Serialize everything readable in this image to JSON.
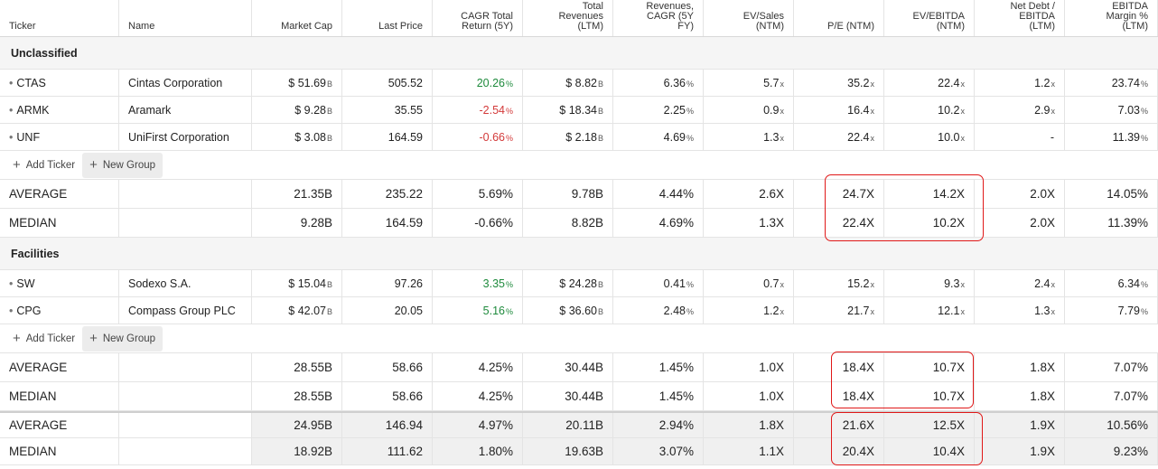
{
  "headers": {
    "ticker": "Ticker",
    "name": "Name",
    "market_cap": "Market Cap",
    "last_price": "Last Price",
    "cagr": [
      "CAGR Total",
      "Return (5Y)"
    ],
    "revenues": [
      "Total",
      "Revenues",
      "(LTM)"
    ],
    "rev_cagr": [
      "Revenues,",
      "CAGR (5Y",
      "FY)"
    ],
    "ev_sales": [
      "EV/Sales",
      "(NTM)"
    ],
    "pe": "P/E (NTM)",
    "ev_ebitda": [
      "EV/EBITDA",
      "(NTM)"
    ],
    "net_debt": [
      "Net Debt /",
      "EBITDA",
      "(LTM)"
    ],
    "ebitda_margin": [
      "EBITDA",
      "Margin %",
      "(LTM)"
    ]
  },
  "groups": [
    {
      "name": "Unclassified",
      "rows": [
        {
          "ticker": "CTAS",
          "name": "Cintas Corporation",
          "mcap": "$ 51.69",
          "mcap_s": "B",
          "price": "505.52",
          "cagr": "20.26",
          "cagr_s": "%",
          "rev": "$ 8.82",
          "rev_s": "B",
          "revc": "6.36",
          "revc_s": "%",
          "evs": "5.7",
          "evs_s": "x",
          "pe": "35.2",
          "pe_s": "x",
          "eve": "22.4",
          "eve_s": "x",
          "nd": "1.2",
          "nd_s": "x",
          "em": "23.74",
          "em_s": "%",
          "cagr_sign": "pos"
        },
        {
          "ticker": "ARMK",
          "name": "Aramark",
          "mcap": "$ 9.28",
          "mcap_s": "B",
          "price": "35.55",
          "cagr": "-2.54",
          "cagr_s": "%",
          "rev": "$ 18.34",
          "rev_s": "B",
          "revc": "2.25",
          "revc_s": "%",
          "evs": "0.9",
          "evs_s": "x",
          "pe": "16.4",
          "pe_s": "x",
          "eve": "10.2",
          "eve_s": "x",
          "nd": "2.9",
          "nd_s": "x",
          "em": "7.03",
          "em_s": "%",
          "cagr_sign": "neg"
        },
        {
          "ticker": "UNF",
          "name": "UniFirst Corporation",
          "mcap": "$ 3.08",
          "mcap_s": "B",
          "price": "164.59",
          "cagr": "-0.66",
          "cagr_s": "%",
          "rev": "$ 2.18",
          "rev_s": "B",
          "revc": "4.69",
          "revc_s": "%",
          "evs": "1.3",
          "evs_s": "x",
          "pe": "22.4",
          "pe_s": "x",
          "eve": "10.0",
          "eve_s": "x",
          "nd": "-",
          "nd_s": "",
          "em": "11.39",
          "em_s": "%",
          "cagr_sign": "neg"
        }
      ],
      "average": {
        "label": "AVERAGE",
        "mcap": "21.35B",
        "price": "235.22",
        "cagr": "5.69%",
        "rev": "9.78B",
        "revc": "4.44%",
        "evs": "2.6X",
        "pe": "24.7X",
        "eve": "14.2X",
        "nd": "2.0X",
        "em": "14.05%"
      },
      "median": {
        "label": "MEDIAN",
        "mcap": "9.28B",
        "price": "164.59",
        "cagr": "-0.66%",
        "rev": "8.82B",
        "revc": "4.69%",
        "evs": "1.3X",
        "pe": "22.4X",
        "eve": "10.2X",
        "nd": "2.0X",
        "em": "11.39%"
      }
    },
    {
      "name": "Facilities",
      "rows": [
        {
          "ticker": "SW",
          "name": "Sodexo S.A.",
          "mcap": "$ 15.04",
          "mcap_s": "B",
          "price": "97.26",
          "cagr": "3.35",
          "cagr_s": "%",
          "rev": "$ 24.28",
          "rev_s": "B",
          "revc": "0.41",
          "revc_s": "%",
          "evs": "0.7",
          "evs_s": "x",
          "pe": "15.2",
          "pe_s": "x",
          "eve": "9.3",
          "eve_s": "x",
          "nd": "2.4",
          "nd_s": "x",
          "em": "6.34",
          "em_s": "%",
          "cagr_sign": "pos"
        },
        {
          "ticker": "CPG",
          "name": "Compass Group PLC",
          "mcap": "$ 42.07",
          "mcap_s": "B",
          "price": "20.05",
          "cagr": "5.16",
          "cagr_s": "%",
          "rev": "$ 36.60",
          "rev_s": "B",
          "revc": "2.48",
          "revc_s": "%",
          "evs": "1.2",
          "evs_s": "x",
          "pe": "21.7",
          "pe_s": "x",
          "eve": "12.1",
          "eve_s": "x",
          "nd": "1.3",
          "nd_s": "x",
          "em": "7.79",
          "em_s": "%",
          "cagr_sign": "pos"
        }
      ],
      "average": {
        "label": "AVERAGE",
        "mcap": "28.55B",
        "price": "58.66",
        "cagr": "4.25%",
        "rev": "30.44B",
        "revc": "1.45%",
        "evs": "1.0X",
        "pe": "18.4X",
        "eve": "10.7X",
        "nd": "1.8X",
        "em": "7.07%"
      },
      "median": {
        "label": "MEDIAN",
        "mcap": "28.55B",
        "price": "58.66",
        "cagr": "4.25%",
        "rev": "30.44B",
        "revc": "1.45%",
        "evs": "1.0X",
        "pe": "18.4X",
        "eve": "10.7X",
        "nd": "1.8X",
        "em": "7.07%"
      }
    }
  ],
  "totals": {
    "average": {
      "label": "AVERAGE",
      "mcap": "24.95B",
      "price": "146.94",
      "cagr": "4.97%",
      "rev": "20.11B",
      "revc": "2.94%",
      "evs": "1.8X",
      "pe": "21.6X",
      "eve": "12.5X",
      "nd": "1.9X",
      "em": "10.56%"
    },
    "median": {
      "label": "MEDIAN",
      "mcap": "18.92B",
      "price": "111.62",
      "cagr": "1.80%",
      "rev": "19.63B",
      "revc": "3.07%",
      "evs": "1.1X",
      "pe": "20.4X",
      "eve": "10.4X",
      "nd": "1.9X",
      "em": "9.23%"
    }
  },
  "actions": {
    "add_ticker": "Add Ticker",
    "new_group": "New Group",
    "plus": "+"
  },
  "colors": {
    "positive": "#1e8a3c",
    "negative": "#d33a3a",
    "highlight": "#e01818"
  },
  "icons": {
    "bullet": "•"
  }
}
